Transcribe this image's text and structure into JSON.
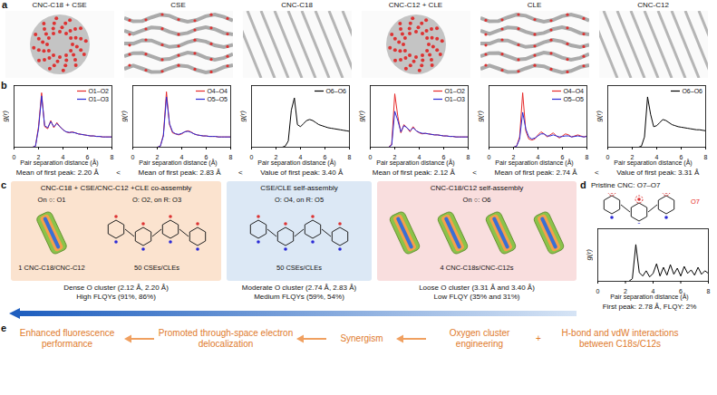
{
  "chart_data": [
    {
      "type": "line",
      "x_label": "Pair separation distance (Å)",
      "y_label": "g(r)",
      "x": [
        0,
        0.25,
        0.5,
        0.75,
        1,
        1.25,
        1.5,
        1.75,
        2,
        2.25,
        2.5,
        2.75,
        3,
        3.25,
        3.5,
        3.75,
        4,
        4.25,
        4.5,
        4.75,
        5,
        5.25,
        5.5,
        5.75,
        6,
        6.25,
        6.5,
        6.75,
        7,
        7.25,
        7.5,
        7.75,
        8
      ],
      "series": [
        {
          "name": "O1–O2",
          "color": "#e62a2a",
          "values": [
            0,
            0,
            0,
            0,
            0,
            0,
            0,
            0.1,
            2.0,
            5.3,
            2.0,
            1.8,
            2.6,
            1.9,
            2.4,
            2.0,
            1.7,
            1.5,
            1.4,
            1.5,
            1.4,
            1.3,
            1.25,
            1.2,
            1.15,
            1.1,
            1.1,
            1.05,
            1.05,
            1,
            1,
            1,
            1
          ]
        },
        {
          "name": "O1–O3",
          "color": "#2a2ad6",
          "values": [
            0,
            0,
            0,
            0,
            0,
            0,
            0,
            0.1,
            1.8,
            5.0,
            2.1,
            1.9,
            2.5,
            2.0,
            2.3,
            2.0,
            1.7,
            1.5,
            1.45,
            1.45,
            1.4,
            1.3,
            1.25,
            1.2,
            1.15,
            1.1,
            1.1,
            1.05,
            1.05,
            1,
            1,
            1,
            1
          ]
        }
      ],
      "xlim": [
        0,
        8
      ],
      "xticks": [
        0,
        2,
        4,
        6,
        8
      ],
      "ylim": [
        0,
        6
      ],
      "tick_labels": "x",
      "legend": "top-right"
    },
    {
      "type": "line",
      "x_label": "Pair separation distance (Å)",
      "y_label": "g(r)",
      "x": [
        0,
        0.25,
        0.5,
        0.75,
        1,
        1.25,
        1.5,
        1.75,
        2,
        2.25,
        2.5,
        2.75,
        3,
        3.25,
        3.5,
        3.75,
        4,
        4.25,
        4.5,
        4.75,
        5,
        5.25,
        5.5,
        5.75,
        6,
        6.25,
        6.5,
        6.75,
        7,
        7.25,
        7.5,
        7.75,
        8
      ],
      "series": [
        {
          "name": "O4–O4",
          "color": "#e62a2a",
          "values": [
            0,
            0,
            0,
            0,
            0,
            0,
            0,
            0,
            0,
            0.1,
            1.2,
            5.4,
            2.2,
            1.4,
            1.3,
            1.2,
            1.3,
            1.5,
            1.6,
            1.5,
            1.3,
            1.2,
            1.15,
            1.1,
            1.1,
            1.05,
            1.05,
            1.05,
            1,
            1,
            1,
            1,
            1
          ]
        },
        {
          "name": "O5–O5",
          "color": "#2a2ad6",
          "values": [
            0,
            0,
            0,
            0,
            0,
            0,
            0,
            0,
            0,
            0.1,
            1.1,
            4.9,
            2.3,
            1.5,
            1.3,
            1.25,
            1.35,
            1.5,
            1.55,
            1.45,
            1.3,
            1.2,
            1.15,
            1.1,
            1.1,
            1.05,
            1.05,
            1.05,
            1,
            1,
            1,
            1,
            1
          ]
        }
      ],
      "xlim": [
        0,
        8
      ],
      "xticks": [
        0,
        2,
        4,
        6,
        8
      ],
      "ylim": [
        0,
        6
      ],
      "tick_labels": "x",
      "legend": "top-right"
    },
    {
      "type": "line",
      "x_label": "Pair separation distance (Å)",
      "y_label": "g(r)",
      "x": [
        0,
        0.25,
        0.5,
        0.75,
        1,
        1.25,
        1.5,
        1.75,
        2,
        2.25,
        2.5,
        2.75,
        3,
        3.25,
        3.5,
        3.75,
        4,
        4.25,
        4.5,
        4.75,
        5,
        5.25,
        5.5,
        5.75,
        6,
        6.25,
        6.5,
        6.75,
        7,
        7.25,
        7.5,
        7.75,
        8
      ],
      "series": [
        {
          "name": "O6–O6",
          "color": "#000000",
          "values": [
            0,
            0,
            0,
            0,
            0,
            0,
            0,
            0,
            0,
            0,
            0,
            0.1,
            0.6,
            3.6,
            4.8,
            2.2,
            2.0,
            2.3,
            2.6,
            2.7,
            2.6,
            2.4,
            2.2,
            2.1,
            2.0,
            1.9,
            1.85,
            1.8,
            1.75,
            1.7,
            1.65,
            1.6,
            1.55
          ]
        }
      ],
      "xlim": [
        0,
        8
      ],
      "xticks": [
        0,
        2,
        4,
        6,
        8
      ],
      "ylim": [
        0,
        6
      ],
      "tick_labels": "x",
      "legend": "top-right"
    },
    {
      "type": "line",
      "x_label": "Pair separation distance (Å)",
      "y_label": "g(r)",
      "x": [
        0,
        0.25,
        0.5,
        0.75,
        1,
        1.25,
        1.5,
        1.75,
        2,
        2.25,
        2.5,
        2.75,
        3,
        3.25,
        3.5,
        3.75,
        4,
        4.25,
        4.5,
        4.75,
        5,
        5.25,
        5.5,
        5.75,
        6,
        6.25,
        6.5,
        6.75,
        7,
        7.25,
        7.5,
        7.75,
        8
      ],
      "series": [
        {
          "name": "O1–O2",
          "color": "#e62a2a",
          "values": [
            0,
            0,
            0,
            0,
            0,
            0,
            0,
            0.3,
            5.2,
            3.0,
            1.4,
            2.2,
            1.9,
            1.5,
            2.0,
            1.6,
            1.4,
            1.3,
            1.35,
            1.3,
            1.25,
            1.2,
            1.2,
            1.15,
            1.1,
            1.1,
            1.05,
            1.05,
            1,
            1,
            1,
            1,
            1
          ]
        },
        {
          "name": "O1–O3",
          "color": "#2a2ad6",
          "values": [
            0,
            0,
            0,
            0,
            0,
            0,
            0,
            0.2,
            3.5,
            2.6,
            1.5,
            2.1,
            1.9,
            1.6,
            1.9,
            1.6,
            1.45,
            1.35,
            1.35,
            1.3,
            1.25,
            1.2,
            1.2,
            1.15,
            1.1,
            1.1,
            1.05,
            1.05,
            1,
            1,
            1,
            1,
            1
          ]
        }
      ],
      "xlim": [
        0,
        8
      ],
      "xticks": [
        0,
        2,
        4,
        6,
        8
      ],
      "ylim": [
        0,
        6
      ],
      "tick_labels": "x",
      "legend": "top-right"
    },
    {
      "type": "line",
      "x_label": "Pair separation distance (Å)",
      "y_label": "g(r)",
      "x": [
        0,
        0.25,
        0.5,
        0.75,
        1,
        1.25,
        1.5,
        1.75,
        2,
        2.25,
        2.5,
        2.75,
        3,
        3.25,
        3.5,
        3.75,
        4,
        4.25,
        4.5,
        4.75,
        5,
        5.25,
        5.5,
        5.75,
        6,
        6.25,
        6.5,
        6.75,
        7,
        7.25,
        7.5,
        7.75,
        8
      ],
      "series": [
        {
          "name": "O4–O4",
          "color": "#e62a2a",
          "values": [
            0,
            0,
            0,
            0,
            0,
            0,
            0,
            0,
            0,
            0.1,
            1.0,
            5.3,
            1.6,
            0.8,
            0.7,
            0.8,
            1.2,
            1.5,
            1.3,
            1.0,
            1.2,
            1.4,
            1.1,
            0.9,
            1.1,
            1.3,
            1.2,
            1.0,
            1.1,
            1.2,
            1.1,
            1.0,
            1.1
          ]
        },
        {
          "name": "O5–O5",
          "color": "#2a2ad6",
          "values": [
            0,
            0,
            0,
            0,
            0,
            0,
            0,
            0,
            0,
            0.1,
            0.8,
            3.4,
            1.8,
            1.0,
            0.8,
            0.9,
            1.1,
            1.3,
            1.3,
            1.1,
            1.1,
            1.2,
            1.1,
            1.0,
            1.05,
            1.1,
            1.1,
            1.0,
            1.05,
            1.1,
            1.05,
            1.0,
            1.05
          ]
        }
      ],
      "xlim": [
        0,
        8
      ],
      "xticks": [
        0,
        2,
        4,
        6,
        8
      ],
      "ylim": [
        0,
        6
      ],
      "tick_labels": "x",
      "legend": "top-right"
    },
    {
      "type": "line",
      "x_label": "Pair separation distance (Å)",
      "y_label": "g(r)",
      "x": [
        0,
        0.25,
        0.5,
        0.75,
        1,
        1.25,
        1.5,
        1.75,
        2,
        2.25,
        2.5,
        2.75,
        3,
        3.25,
        3.5,
        3.75,
        4,
        4.25,
        4.5,
        4.75,
        5,
        5.25,
        5.5,
        5.75,
        6,
        6.25,
        6.5,
        6.75,
        7,
        7.25,
        7.5,
        7.75,
        8
      ],
      "series": [
        {
          "name": "O6–O6",
          "color": "#000000",
          "values": [
            0,
            0,
            0,
            0,
            0,
            0,
            0,
            0,
            0,
            0,
            0,
            0.1,
            1.0,
            4.9,
            3.2,
            2.0,
            2.1,
            2.4,
            2.7,
            2.6,
            2.4,
            2.2,
            2.1,
            2.0,
            1.95,
            1.9,
            1.85,
            1.8,
            1.75,
            1.7,
            1.7,
            1.65,
            1.6
          ]
        }
      ],
      "xlim": [
        0,
        8
      ],
      "xticks": [
        0,
        2,
        4,
        6,
        8
      ],
      "ylim": [
        0,
        6
      ],
      "tick_labels": "x",
      "legend": "top-right"
    },
    {
      "type": "line",
      "title": "Pristine CNC: O7–O7",
      "x_label": "Pair separation distance (Å)",
      "y_label": "g(r)",
      "annotations": [
        "First peak: 2.78 Å, FLQY: 2%"
      ],
      "x": [
        0,
        0.25,
        0.5,
        0.75,
        1,
        1.25,
        1.5,
        1.75,
        2,
        2.25,
        2.5,
        2.75,
        3,
        3.25,
        3.5,
        3.75,
        4,
        4.25,
        4.5,
        4.75,
        5,
        5.25,
        5.5,
        5.75,
        6,
        6.25,
        6.5,
        6.75,
        7,
        7.25,
        7.5,
        7.75,
        8
      ],
      "series": [
        {
          "color": "#000000",
          "values": [
            0,
            0,
            0,
            0,
            0,
            0,
            0,
            0,
            0,
            0,
            0.3,
            4.2,
            1.0,
            0.6,
            1.2,
            0.5,
            0.9,
            2.0,
            0.6,
            1.6,
            0.7,
            1.9,
            0.8,
            1.5,
            0.6,
            1.7,
            0.9,
            1.3,
            0.7,
            1.6,
            0.8,
            1.2,
            0.9
          ]
        }
      ],
      "xlim": [
        0,
        8
      ],
      "xticks": [
        0,
        2,
        4,
        6,
        8
      ],
      "ylim": [
        0,
        6
      ],
      "tick_labels": "x"
    }
  ],
  "panel_letters": [
    "a",
    "b",
    "c",
    "d",
    "e"
  ],
  "panel_a": {
    "titles": [
      "CNC-C18 + CSE",
      "CSE",
      "CNC-C18",
      "CNC-C12 + CLE",
      "CLE",
      "CNC-C12"
    ]
  },
  "panel_b": {
    "comparisons": [
      [
        "Mean of first peak: 2.20 Å",
        "Mean of first peak: 2.83 Å",
        "Value of first peak: 3.40 Å"
      ],
      [
        "Mean of first peak: 2.12 Å",
        "Mean of first peak: 2.74 Å",
        "Value of first peak: 3.31 Å"
      ]
    ],
    "separator": "<"
  },
  "panel_c": {
    "boxes": [
      {
        "title": "CNC-C18 + CSE/CNC-C12 +CLE co-assembly",
        "rod_label": "On ○: O1",
        "structure_label": "O: O2, on R: O3",
        "counts": [
          "1 CNC-C18/CNC-C12",
          "50 CSEs/CLEs"
        ],
        "cluster": "Dense O cluster (2.12 Å, 2.20 Å)",
        "flqy": "High FLQYs (91%, 86%)"
      },
      {
        "title": "CSE/CLE self-assembly",
        "structure_label": "O: O4, on R: O5",
        "counts": [
          "50 CSEs/CLEs"
        ],
        "cluster": "Moderate O cluster (2.74 Å, 2.83 Å)",
        "flqy": "Medium FLQYs (59%, 54%)"
      },
      {
        "title": "CNC-C18/C12 self-assembly",
        "rod_label": "On ○: O6",
        "counts": [
          "4 CNC-C18s/CNC-C12s"
        ],
        "cluster": "Loose O cluster (3.31 Å and 3.40 Å)",
        "flqy": "Low FLQY (35% and 31%)"
      }
    ]
  },
  "panel_d": {
    "structure_label": "O7"
  },
  "panel_e": {
    "items": [
      "Enhanced fluorescence performance",
      "Promoted through-space electron delocalization",
      "Synergism",
      "Oxygen cluster engineering"
    ],
    "plus": "+",
    "extra": "H-bond and vdW interactions between C18s/C12s"
  }
}
